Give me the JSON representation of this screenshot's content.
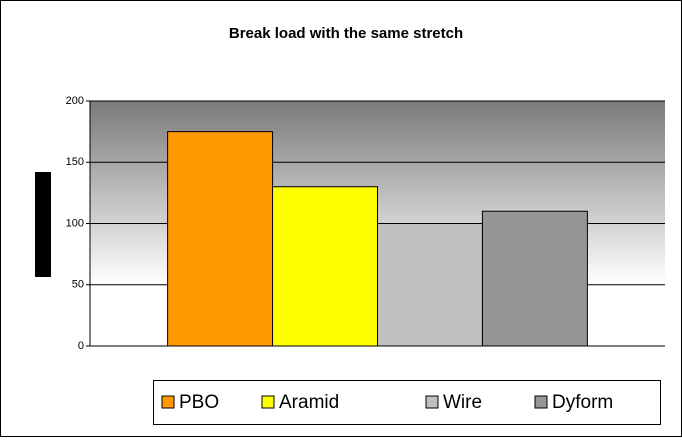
{
  "chart_data": {
    "type": "bar",
    "title": "Break load with the same stretch",
    "categories": [
      null
    ],
    "series": [
      {
        "name": "PBO",
        "color": "#ff9900",
        "values": [
          175
        ]
      },
      {
        "name": "Aramid",
        "color": "#ffff00",
        "values": [
          130
        ]
      },
      {
        "name": "Wire",
        "color": "#c0c0c0",
        "values": [
          100
        ]
      },
      {
        "name": "Dyform",
        "color": "#969696",
        "values": [
          110
        ]
      }
    ],
    "ylim": [
      0,
      200
    ],
    "yticks": [
      0,
      50,
      100,
      150,
      200
    ],
    "grid": true,
    "legend": "bottom"
  }
}
